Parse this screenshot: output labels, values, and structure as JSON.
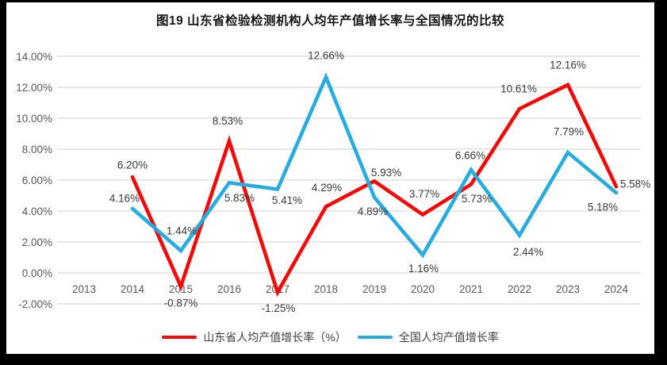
{
  "chart_data": {
    "type": "line",
    "title": "图19  山东省检验检测机构人均年产值增长率与全国情况的比较",
    "categories": [
      "2013",
      "2014",
      "2015",
      "2016",
      "2017",
      "2018",
      "2019",
      "2020",
      "2021",
      "2022",
      "2023",
      "2024"
    ],
    "series": [
      {
        "name": "山东省人均产值增长率（%）",
        "color": "#F40909",
        "values": [
          null,
          6.2,
          -0.87,
          8.53,
          -1.25,
          4.29,
          5.93,
          3.77,
          5.73,
          10.61,
          12.16,
          5.58
        ],
        "labels": [
          "",
          "6.20%",
          "-0.87%",
          "8.53%",
          "-1.25%",
          "4.29%",
          "5.93%",
          "3.77%",
          "5.73%",
          "10.61%",
          "12.16%",
          "5.58%"
        ],
        "label_offsets": [
          [
            0,
            0
          ],
          [
            0,
            -15
          ],
          [
            0,
            21
          ],
          [
            -2,
            -25
          ],
          [
            1,
            20
          ],
          [
            1,
            -24
          ],
          [
            15,
            -11
          ],
          [
            2,
            -26
          ],
          [
            7,
            18
          ],
          [
            -1,
            -25
          ],
          [
            0,
            -25
          ],
          [
            24,
            -3
          ]
        ]
      },
      {
        "name": "全国人均产值增长率",
        "color": "#27ACE2",
        "values": [
          null,
          4.16,
          1.44,
          5.83,
          5.41,
          12.66,
          4.89,
          1.16,
          6.66,
          2.44,
          7.79,
          5.18
        ],
        "labels": [
          "",
          "4.16%",
          "1.44%",
          "5.83%",
          "5.41%",
          "12.66%",
          "4.89%",
          "1.16%",
          "6.66%",
          "2.44%",
          "7.79%",
          "5.18%"
        ],
        "label_offsets": [
          [
            0,
            0
          ],
          [
            -10,
            -13
          ],
          [
            1,
            -25
          ],
          [
            13,
            19
          ],
          [
            12,
            14
          ],
          [
            0,
            -27
          ],
          [
            -2,
            18
          ],
          [
            1,
            17
          ],
          [
            -1,
            -18
          ],
          [
            11,
            21
          ],
          [
            1,
            -26
          ],
          [
            -17,
            18
          ]
        ]
      }
    ],
    "y_axis": {
      "min": -2,
      "max": 14,
      "step": 2,
      "tick_labels": [
        "14.00%",
        "12.00%",
        "10.00%",
        "8.00%",
        "6.00%",
        "4.00%",
        "2.00%",
        "0.00%",
        "-2.00%"
      ],
      "format": "percent"
    },
    "grid": true,
    "gridline_color": "#D9D9D9",
    "tick_color": "#595959",
    "data_label_color": "#3a3a3a",
    "legend_position": "bottom"
  }
}
